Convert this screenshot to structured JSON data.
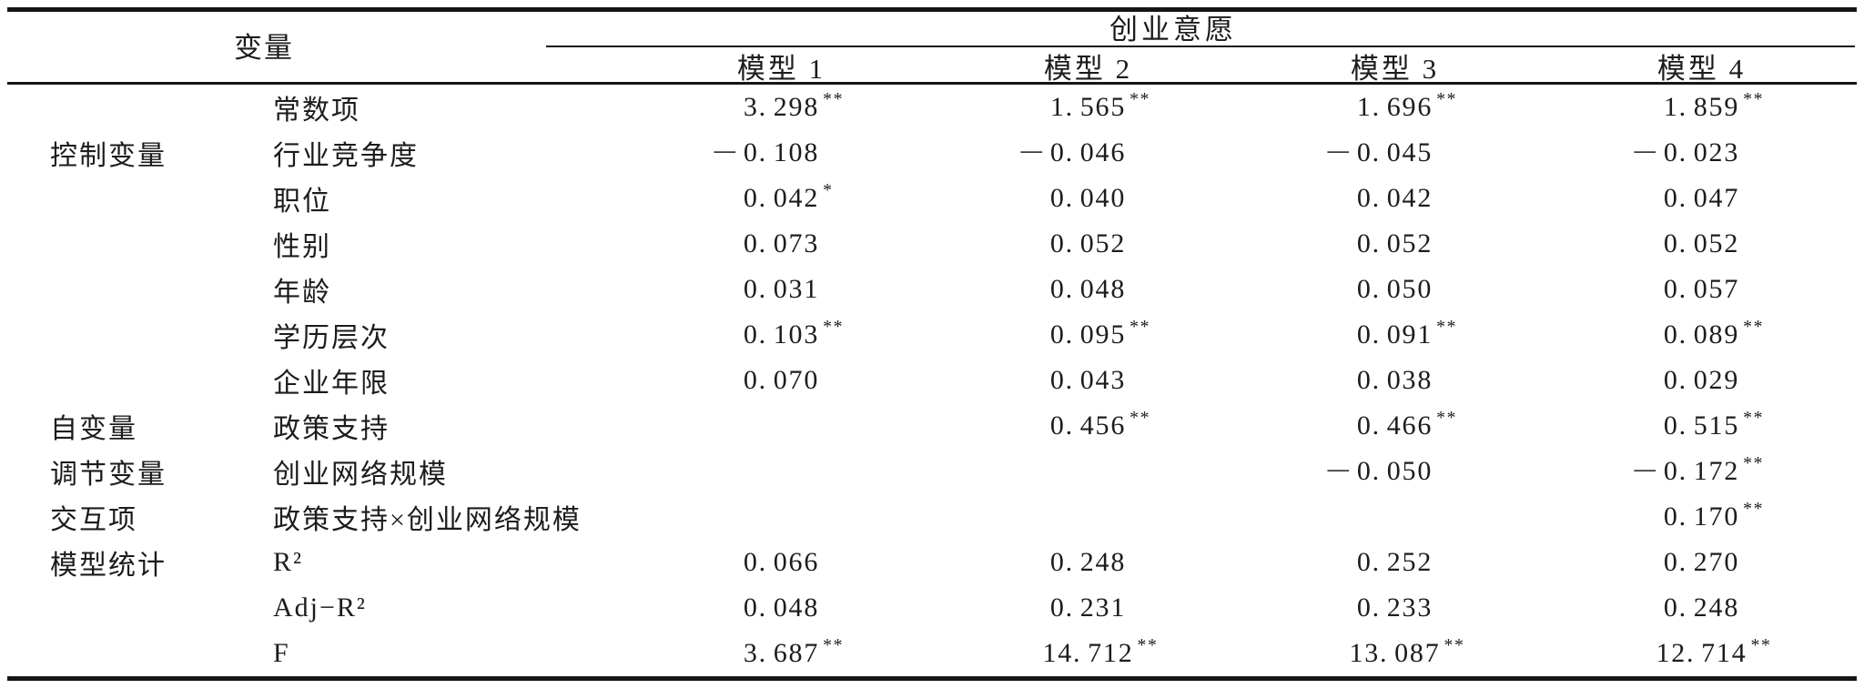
{
  "table": {
    "title_col_header": "变量",
    "span_header": "创业意愿",
    "model_headers": [
      "模型 1",
      "模型 2",
      "模型 3",
      "模型 4"
    ],
    "rows": [
      {
        "category": "",
        "variable": "常数项",
        "values": [
          "3.298**",
          "1.565**",
          "1.696**",
          "1.859**"
        ]
      },
      {
        "category": "控制变量",
        "variable": "行业竞争度",
        "values": [
          "−0.108",
          "−0.046",
          "−0.045",
          "−0.023"
        ]
      },
      {
        "category": "",
        "variable": "职位",
        "values": [
          "0.042*",
          "0.040",
          "0.042",
          "0.047"
        ]
      },
      {
        "category": "",
        "variable": "性别",
        "values": [
          "0.073",
          "0.052",
          "0.052",
          "0.052"
        ]
      },
      {
        "category": "",
        "variable": "年龄",
        "values": [
          "0.031",
          "0.048",
          "0.050",
          "0.057"
        ]
      },
      {
        "category": "",
        "variable": "学历层次",
        "values": [
          "0.103**",
          "0.095**",
          "0.091**",
          "0.089**"
        ]
      },
      {
        "category": "",
        "variable": "企业年限",
        "values": [
          "0.070",
          "0.043",
          "0.038",
          "0.029"
        ]
      },
      {
        "category": "自变量",
        "variable": "政策支持",
        "values": [
          "",
          "0.456**",
          "0.466**",
          "0.515**"
        ]
      },
      {
        "category": "调节变量",
        "variable": "创业网络规模",
        "values": [
          "",
          "",
          "−0.050",
          "−0.172**"
        ]
      },
      {
        "category": "交互项",
        "variable": "政策支持×创业网络规模",
        "values": [
          "",
          "",
          "",
          "0.170**"
        ]
      },
      {
        "category": "模型统计",
        "variable": "R²",
        "values": [
          "0.066",
          "0.248",
          "0.252",
          "0.270"
        ]
      },
      {
        "category": "",
        "variable": "Adj−R²",
        "values": [
          "0.048",
          "0.231",
          "0.233",
          "0.248"
        ]
      },
      {
        "category": "",
        "variable": "F",
        "values": [
          "3.687**",
          "14.712**",
          "13.087**",
          "12.714**"
        ]
      }
    ]
  }
}
